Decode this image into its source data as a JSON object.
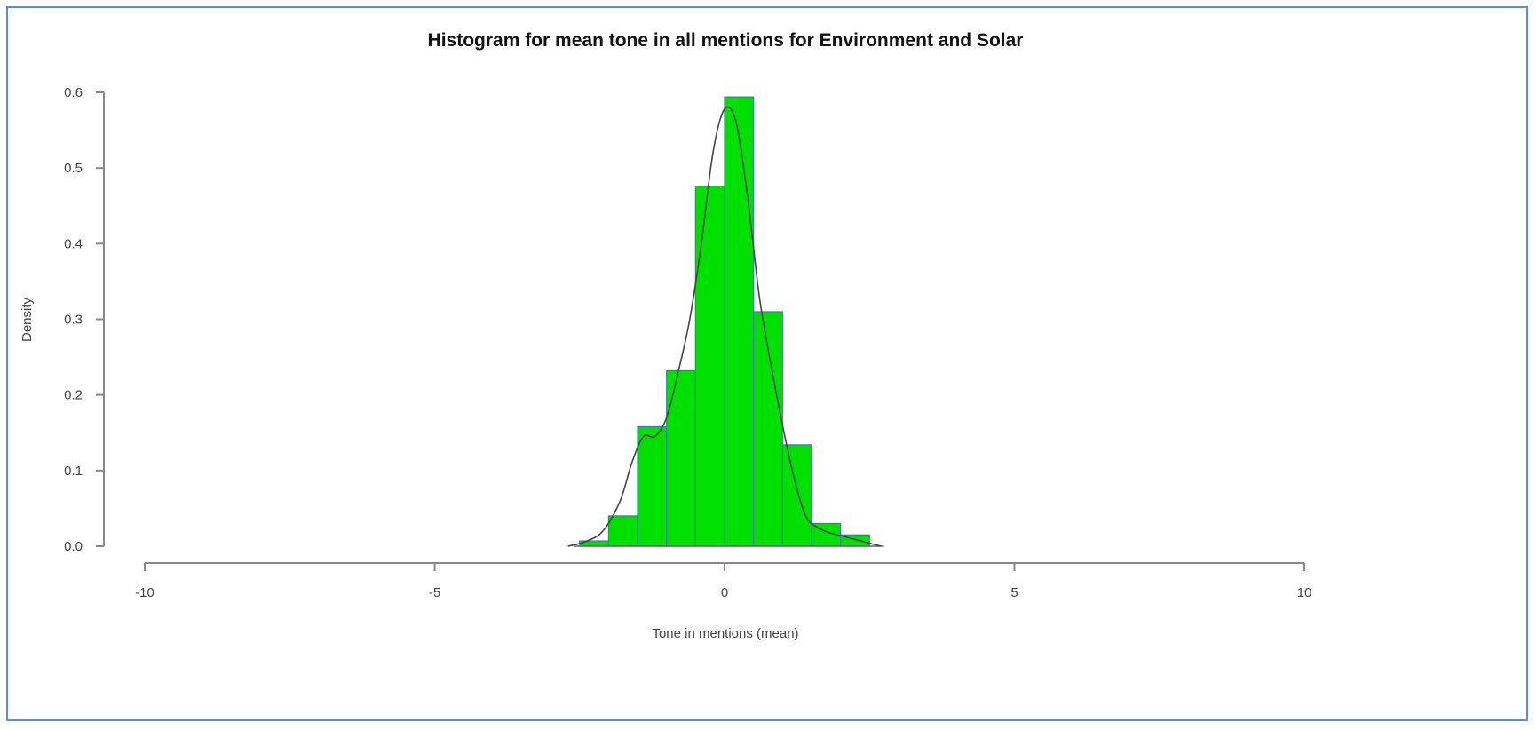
{
  "chart_data": {
    "type": "bar",
    "subtype": "histogram-with-density",
    "title": "Histogram for mean tone in all mentions for Environment and Solar",
    "xlabel": "Tone in mentions (mean)",
    "ylabel": "Density",
    "xlim": [
      -10,
      10
    ],
    "ylim": [
      0,
      0.6
    ],
    "x_ticks": [
      -10,
      -5,
      0,
      5,
      10
    ],
    "y_ticks": [
      0.0,
      0.1,
      0.2,
      0.3,
      0.4,
      0.5,
      0.6
    ],
    "x_tick_labels": [
      "-10",
      "-5",
      "0",
      "5",
      "10"
    ],
    "y_tick_labels": [
      "0.0",
      "0.1",
      "0.2",
      "0.3",
      "0.4",
      "0.5",
      "0.6"
    ],
    "bins": [
      {
        "x0": -2.5,
        "x1": -2.0,
        "density": 0.007
      },
      {
        "x0": -2.0,
        "x1": -1.5,
        "density": 0.04
      },
      {
        "x0": -1.5,
        "x1": -1.0,
        "density": 0.158
      },
      {
        "x0": -1.0,
        "x1": -0.5,
        "density": 0.232
      },
      {
        "x0": -0.5,
        "x1": 0.0,
        "density": 0.476
      },
      {
        "x0": 0.0,
        "x1": 0.5,
        "density": 0.594
      },
      {
        "x0": 0.5,
        "x1": 1.0,
        "density": 0.31
      },
      {
        "x0": 1.0,
        "x1": 1.5,
        "density": 0.134
      },
      {
        "x0": 1.5,
        "x1": 2.0,
        "density": 0.03
      },
      {
        "x0": 2.0,
        "x1": 2.5,
        "density": 0.015
      }
    ],
    "density_curve": {
      "x": [
        -2.7,
        -2.4,
        -2.1,
        -1.8,
        -1.6,
        -1.4,
        -1.2,
        -1.0,
        -0.8,
        -0.6,
        -0.4,
        -0.2,
        0.0,
        0.2,
        0.4,
        0.6,
        0.8,
        1.0,
        1.2,
        1.4,
        1.6,
        1.8,
        2.0,
        2.2,
        2.4,
        2.7
      ],
      "y": [
        0.0,
        0.006,
        0.02,
        0.06,
        0.11,
        0.145,
        0.145,
        0.17,
        0.23,
        0.3,
        0.4,
        0.52,
        0.578,
        0.56,
        0.46,
        0.33,
        0.24,
        0.16,
        0.09,
        0.04,
        0.025,
        0.018,
        0.014,
        0.01,
        0.006,
        0.0
      ]
    },
    "grid": false,
    "colors": {
      "bar_fill": "#00e000",
      "bar_edge": "#3a7fa0",
      "curve": "#444444",
      "axis": "#888888",
      "frame": "#5b8fd0"
    }
  }
}
